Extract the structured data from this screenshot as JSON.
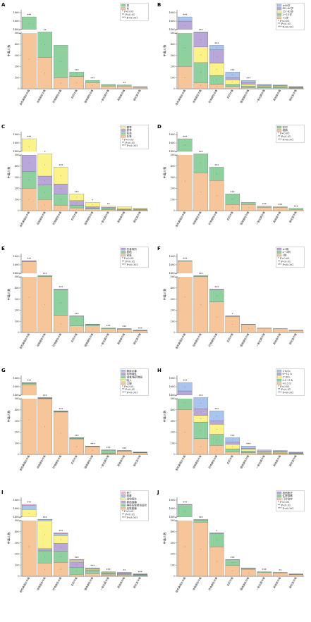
{
  "colors": {
    "peach": "#f7c59a",
    "green": "#8fd19e",
    "blue": "#a9c4ee",
    "purple": "#b9a7da",
    "yellow": "#fbf38a",
    "teal": "#7fc7b6",
    "pink": "#f6b7d2",
    "grey": "#b8b8b8"
  },
  "shared": {
    "categories": [
      "急性鼻咽炎中毒",
      "动物源性中毒",
      "药物源性中毒",
      "农药中毒",
      "植物源性中毒",
      "一氧化碳中毒",
      "其他类中毒",
      "硫化氢中毒"
    ],
    "totals": [
      1700,
      510,
      390,
      150,
      75,
      40,
      35,
      20
    ],
    "ylabel": "中毒人数",
    "lower_ticks": [
      "0",
      "100",
      "200",
      "300",
      "400",
      "500"
    ],
    "upper_ticks": [
      "1400",
      "1600",
      "1800"
    ]
  },
  "chart_data": [
    {
      "panel": "A",
      "type": "bar",
      "stacked": true,
      "series": [
        {
          "name": "男",
          "color": "green",
          "values": [
            900,
            230,
            290,
            40,
            20,
            15,
            12,
            8
          ]
        },
        {
          "name": "女",
          "color": "peach",
          "values": [
            800,
            280,
            100,
            110,
            55,
            25,
            23,
            12
          ]
        }
      ],
      "stars": [
        "***",
        "**",
        "",
        "***",
        "***",
        "",
        "**",
        ""
      ],
      "legend_sig": [
        "* P<0.05",
        "** P<0.01",
        "*** P<0.001"
      ]
    },
    {
      "panel": "B",
      "type": "bar",
      "stacked": true,
      "series": [
        {
          "name": "≥60岁",
          "color": "blue",
          "values": [
            100,
            5,
            40,
            50,
            15,
            8,
            5,
            4
          ]
        },
        {
          "name": "45~60岁",
          "color": "purple",
          "values": [
            500,
            130,
            120,
            20,
            20,
            8,
            5,
            4
          ]
        },
        {
          "name": "15~45岁",
          "color": "yellow",
          "values": [
            300,
            140,
            110,
            40,
            15,
            8,
            8,
            4
          ]
        },
        {
          "name": "2~15岁",
          "color": "green",
          "values": [
            600,
            180,
            80,
            20,
            15,
            8,
            10,
            4
          ]
        },
        {
          "name": "<2岁",
          "color": "peach",
          "values": [
            200,
            55,
            40,
            20,
            10,
            8,
            7,
            4
          ]
        }
      ],
      "stars": [
        "***",
        "***",
        "***",
        "***",
        "***",
        "",
        "",
        ""
      ],
      "legend_sig": [
        "* P<0.05",
        "** P<0.01",
        "*** P<0.001"
      ]
    },
    {
      "panel": "C",
      "type": "bar",
      "stacked": true,
      "series": [
        {
          "name": "春季",
          "color": "yellow",
          "values": [
            1200,
            200,
            150,
            60,
            40,
            10,
            20,
            5
          ]
        },
        {
          "name": "夏季",
          "color": "purple",
          "values": [
            150,
            80,
            90,
            40,
            10,
            10,
            5,
            5
          ]
        },
        {
          "name": "秋季",
          "color": "green",
          "values": [
            150,
            130,
            100,
            25,
            10,
            10,
            5,
            5
          ]
        },
        {
          "name": "冬季",
          "color": "peach",
          "values": [
            200,
            100,
            50,
            25,
            15,
            10,
            5,
            5
          ]
        }
      ],
      "stars": [
        "***",
        "*",
        "***",
        "***",
        "*",
        "**",
        "",
        ""
      ],
      "legend_sig": [
        "* P<0.05",
        "** P<0.01",
        "*** P<0.001"
      ]
    },
    {
      "panel": "D",
      "type": "bar",
      "stacked": true,
      "series": [
        {
          "name": "农村",
          "color": "green",
          "values": [
            300,
            170,
            120,
            95,
            20,
            10,
            5,
            8
          ]
        },
        {
          "name": "城镇",
          "color": "peach",
          "values": [
            1400,
            340,
            270,
            55,
            55,
            30,
            30,
            12
          ]
        }
      ],
      "stars": [
        "***",
        "***",
        "***",
        "***",
        "",
        "***",
        "***",
        "***"
      ],
      "legend_sig": [
        "* P<0.05",
        "** P<0.01",
        "*** P<0.001"
      ]
    },
    {
      "panel": "E",
      "type": "bar",
      "stacked": true,
      "series": [
        {
          "name": "饮食场所",
          "color": "purple",
          "values": [
            10,
            3,
            5,
            2,
            2,
            1,
            1,
            1
          ]
        },
        {
          "name": "其他",
          "color": "green",
          "values": [
            20,
            5,
            230,
            90,
            15,
            5,
            5,
            4
          ]
        },
        {
          "name": "家庭",
          "color": "peach",
          "values": [
            1670,
            502,
            155,
            58,
            58,
            34,
            29,
            15
          ]
        }
      ],
      "stars": [
        "***",
        "***",
        "***",
        "***",
        "",
        "***",
        "***",
        "***"
      ],
      "legend_sig": [
        "* P<0.05",
        "** P<0.01",
        "*** P<0.001"
      ]
    },
    {
      "panel": "F",
      "type": "bar",
      "stacked": true,
      "series": [
        {
          "name": "≥3例",
          "color": "purple",
          "values": [
            5,
            3,
            5,
            2,
            1,
            1,
            1,
            1
          ]
        },
        {
          "name": "2~3例",
          "color": "green",
          "values": [
            10,
            5,
            110,
            5,
            2,
            1,
            1,
            1
          ]
        },
        {
          "name": "1例",
          "color": "peach",
          "values": [
            1685,
            502,
            275,
            143,
            72,
            38,
            33,
            18
          ]
        }
      ],
      "stars": [
        "***",
        "***",
        "***",
        "*",
        "",
        "",
        "",
        ""
      ],
      "legend_sig": [
        "* P<0.05",
        "** P<0.01",
        "*** P<0.001"
      ]
    },
    {
      "panel": "G",
      "type": "bar",
      "stacked": true,
      "series": [
        {
          "name": "群体中毒",
          "color": "blue",
          "values": [
            10,
            2,
            2,
            2,
            1,
            1,
            1,
            1
          ]
        },
        {
          "name": "动物源性",
          "color": "purple",
          "values": [
            10,
            2,
            2,
            2,
            1,
            1,
            1,
            1
          ]
        },
        {
          "name": "误食/服药物品",
          "color": "green",
          "values": [
            20,
            3,
            3,
            5,
            3,
            30,
            3,
            2
          ]
        },
        {
          "name": "吸入",
          "color": "yellow",
          "values": [
            20,
            3,
            3,
            5,
            2,
            2,
            1,
            1
          ]
        },
        {
          "name": "口服",
          "color": "peach",
          "values": [
            1640,
            500,
            380,
            136,
            68,
            6,
            29,
            15
          ]
        }
      ],
      "stars": [
        "***",
        "***",
        "***",
        "***",
        "***",
        "***",
        "***",
        ""
      ],
      "legend_sig": [
        "* P<0.05",
        "** P<0.01",
        "*** P<0.001"
      ]
    },
    {
      "panel": "H",
      "type": "bar",
      "stacked": true,
      "series": [
        {
          "name": ">12 h",
          "color": "blue",
          "values": [
            200,
            100,
            90,
            40,
            20,
            10,
            8,
            4
          ]
        },
        {
          "name": "6~12 h",
          "color": "purple",
          "values": [
            100,
            60,
            30,
            20,
            10,
            5,
            5,
            4
          ]
        },
        {
          "name": "3~6 h",
          "color": "yellow",
          "values": [
            300,
            60,
            90,
            40,
            15,
            10,
            8,
            4
          ]
        },
        {
          "name": "0.5~3 h",
          "color": "green",
          "values": [
            700,
            150,
            100,
            30,
            15,
            10,
            7,
            4
          ]
        },
        {
          "name": "<0.5 h",
          "color": "peach",
          "values": [
            400,
            140,
            80,
            20,
            15,
            5,
            7,
            4
          ]
        }
      ],
      "stars": [
        "***",
        "***",
        "***",
        "***",
        "***",
        "",
        "",
        ""
      ],
      "legend_sig": [
        "* P<0.05",
        "** P<0.01",
        "*** P<0.001"
      ]
    },
    {
      "panel": "I",
      "type": "bar",
      "stacked": true,
      "series": [
        {
          "name": "死亡",
          "color": "pink",
          "values": [
            20,
            2,
            5,
            3,
            2,
            1,
            1,
            1
          ]
        },
        {
          "name": "轻度",
          "color": "blue",
          "values": [
            100,
            10,
            20,
            10,
            5,
            3,
            3,
            2
          ]
        },
        {
          "name": "消化呕吐",
          "color": "yellow",
          "values": [
            200,
            250,
            70,
            10,
            10,
            6,
            6,
            3
          ]
        },
        {
          "name": "昏迷抽搐",
          "color": "purple",
          "values": [
            100,
            20,
            70,
            50,
            10,
            6,
            6,
            3
          ]
        },
        {
          "name": "神经系统损伤症状",
          "color": "green",
          "values": [
            280,
            110,
            100,
            60,
            25,
            12,
            9,
            5
          ]
        },
        {
          "name": "皮肤黏膜",
          "color": "peach",
          "values": [
            1000,
            118,
            125,
            17,
            23,
            12,
            10,
            6
          ]
        }
      ],
      "stars": [
        "***",
        "***",
        "***",
        "***",
        "***",
        "***",
        "**",
        "***"
      ],
      "legend_sig": [
        "* P<0.05",
        "** P<0.01",
        "*** P<0.001"
      ]
    },
    {
      "panel": "J",
      "type": "bar",
      "stacked": true,
      "series": [
        {
          "name": "其他医疗",
          "color": "purple",
          "values": [
            10,
            5,
            5,
            3,
            2,
            1,
            1,
            1
          ]
        },
        {
          "name": "住院观察",
          "color": "green",
          "values": [
            450,
            20,
            120,
            50,
            10,
            5,
            5,
            4
          ]
        },
        {
          "name": "门诊治疗",
          "color": "peach",
          "values": [
            1240,
            485,
            265,
            97,
            63,
            34,
            29,
            15
          ]
        }
      ],
      "stars": [
        "***",
        "***",
        "*",
        "***",
        "",
        "***",
        "**",
        ""
      ],
      "legend_sig": [
        "* P<0.05",
        "** P<0.01",
        "*** P<0.001"
      ]
    }
  ]
}
